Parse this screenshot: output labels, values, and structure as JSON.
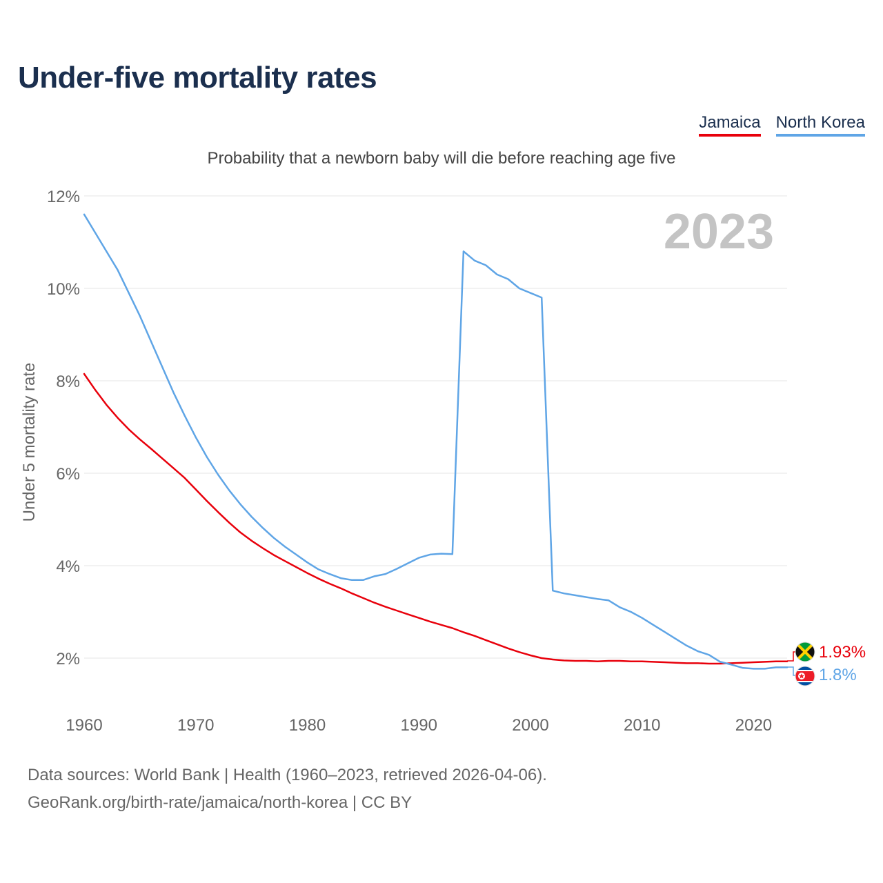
{
  "title": "Under-five mortality rates",
  "subtitle": "Probability that a newborn baby will die before reaching age five",
  "legend": [
    {
      "label": "Jamaica",
      "color": "#e8000b"
    },
    {
      "label": "North Korea",
      "color": "#5fa5e6"
    }
  ],
  "year_watermark": "2023",
  "end_labels": {
    "jamaica": "1.93%",
    "north_korea": "1.8%"
  },
  "footer": {
    "line1": "Data sources: World Bank | Health (1960–2023, retrieved 2026-04-06).",
    "line2": "GeoRank.org/birth-rate/jamaica/north-korea | CC BY"
  },
  "chart_data": {
    "type": "line",
    "title": "Under-five mortality rates",
    "ylabel": "Under 5 mortality rate",
    "xlabel": "",
    "ylim": [
      1,
      12
    ],
    "xlim": [
      1960,
      2023
    ],
    "yticks": [
      2,
      4,
      6,
      8,
      10,
      12
    ],
    "ytick_labels": [
      "2%",
      "4%",
      "6%",
      "8%",
      "10%",
      "12%"
    ],
    "xticks": [
      1960,
      1970,
      1980,
      1990,
      2000,
      2010,
      2020
    ],
    "xtick_labels": [
      "1960",
      "1970",
      "1980",
      "1990",
      "2000",
      "2010",
      "2020"
    ],
    "grid": true,
    "series": [
      {
        "name": "Jamaica",
        "color": "#e8000b",
        "points": [
          [
            1960,
            8.15
          ],
          [
            1961,
            7.8
          ],
          [
            1962,
            7.48
          ],
          [
            1963,
            7.2
          ],
          [
            1964,
            6.95
          ],
          [
            1965,
            6.73
          ],
          [
            1966,
            6.53
          ],
          [
            1967,
            6.32
          ],
          [
            1968,
            6.11
          ],
          [
            1969,
            5.9
          ],
          [
            1970,
            5.65
          ],
          [
            1971,
            5.4
          ],
          [
            1972,
            5.16
          ],
          [
            1973,
            4.93
          ],
          [
            1974,
            4.72
          ],
          [
            1975,
            4.54
          ],
          [
            1976,
            4.38
          ],
          [
            1977,
            4.23
          ],
          [
            1978,
            4.1
          ],
          [
            1979,
            3.97
          ],
          [
            1980,
            3.84
          ],
          [
            1981,
            3.72
          ],
          [
            1982,
            3.61
          ],
          [
            1983,
            3.51
          ],
          [
            1984,
            3.4
          ],
          [
            1985,
            3.3
          ],
          [
            1986,
            3.2
          ],
          [
            1987,
            3.11
          ],
          [
            1988,
            3.03
          ],
          [
            1989,
            2.95
          ],
          [
            1990,
            2.87
          ],
          [
            1991,
            2.79
          ],
          [
            1992,
            2.72
          ],
          [
            1993,
            2.65
          ],
          [
            1994,
            2.56
          ],
          [
            1995,
            2.48
          ],
          [
            1996,
            2.39
          ],
          [
            1997,
            2.3
          ],
          [
            1998,
            2.21
          ],
          [
            1999,
            2.13
          ],
          [
            2000,
            2.06
          ],
          [
            2001,
            2.0
          ],
          [
            2002,
            1.97
          ],
          [
            2003,
            1.95
          ],
          [
            2004,
            1.94
          ],
          [
            2005,
            1.94
          ],
          [
            2006,
            1.93
          ],
          [
            2007,
            1.94
          ],
          [
            2008,
            1.94
          ],
          [
            2009,
            1.93
          ],
          [
            2010,
            1.93
          ],
          [
            2011,
            1.92
          ],
          [
            2012,
            1.91
          ],
          [
            2013,
            1.9
          ],
          [
            2014,
            1.89
          ],
          [
            2015,
            1.89
          ],
          [
            2016,
            1.88
          ],
          [
            2017,
            1.88
          ],
          [
            2018,
            1.89
          ],
          [
            2019,
            1.9
          ],
          [
            2020,
            1.91
          ],
          [
            2021,
            1.92
          ],
          [
            2022,
            1.93
          ],
          [
            2023,
            1.93
          ]
        ]
      },
      {
        "name": "North Korea",
        "color": "#5fa5e6",
        "points": [
          [
            1960,
            11.6
          ],
          [
            1961,
            11.2
          ],
          [
            1962,
            10.8
          ],
          [
            1963,
            10.4
          ],
          [
            1964,
            9.9
          ],
          [
            1965,
            9.4
          ],
          [
            1966,
            8.85
          ],
          [
            1967,
            8.3
          ],
          [
            1968,
            7.75
          ],
          [
            1969,
            7.25
          ],
          [
            1970,
            6.78
          ],
          [
            1971,
            6.35
          ],
          [
            1972,
            5.97
          ],
          [
            1973,
            5.63
          ],
          [
            1974,
            5.33
          ],
          [
            1975,
            5.06
          ],
          [
            1976,
            4.82
          ],
          [
            1977,
            4.6
          ],
          [
            1978,
            4.41
          ],
          [
            1979,
            4.24
          ],
          [
            1980,
            4.07
          ],
          [
            1981,
            3.92
          ],
          [
            1982,
            3.82
          ],
          [
            1983,
            3.73
          ],
          [
            1984,
            3.69
          ],
          [
            1985,
            3.69
          ],
          [
            1986,
            3.77
          ],
          [
            1987,
            3.82
          ],
          [
            1988,
            3.93
          ],
          [
            1989,
            4.05
          ],
          [
            1990,
            4.17
          ],
          [
            1991,
            4.24
          ],
          [
            1992,
            4.26
          ],
          [
            1993,
            4.25
          ],
          [
            1994,
            10.8
          ],
          [
            1995,
            10.6
          ],
          [
            1996,
            10.5
          ],
          [
            1997,
            10.3
          ],
          [
            1998,
            10.2
          ],
          [
            1999,
            10.0
          ],
          [
            2000,
            9.9
          ],
          [
            2001,
            9.8
          ],
          [
            2002,
            3.46
          ],
          [
            2003,
            3.4
          ],
          [
            2004,
            3.36
          ],
          [
            2005,
            3.32
          ],
          [
            2006,
            3.28
          ],
          [
            2007,
            3.25
          ],
          [
            2008,
            3.1
          ],
          [
            2009,
            3.0
          ],
          [
            2010,
            2.87
          ],
          [
            2011,
            2.72
          ],
          [
            2012,
            2.57
          ],
          [
            2013,
            2.42
          ],
          [
            2014,
            2.27
          ],
          [
            2015,
            2.15
          ],
          [
            2016,
            2.07
          ],
          [
            2017,
            1.92
          ],
          [
            2018,
            1.86
          ],
          [
            2019,
            1.79
          ],
          [
            2020,
            1.77
          ],
          [
            2021,
            1.77
          ],
          [
            2022,
            1.8
          ],
          [
            2023,
            1.8
          ]
        ]
      }
    ]
  }
}
